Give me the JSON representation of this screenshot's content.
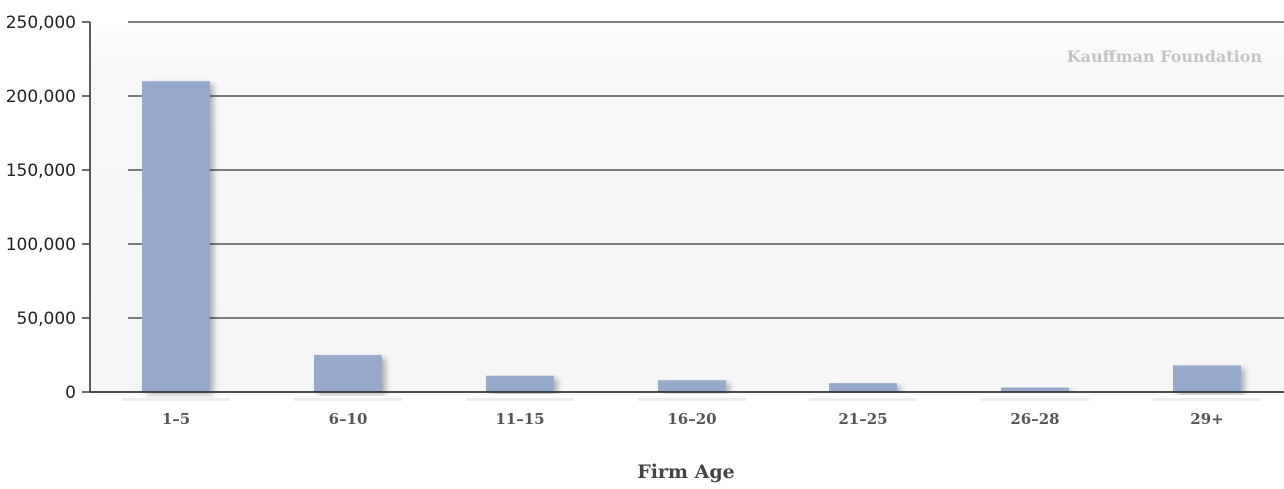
{
  "chart_data": {
    "type": "bar",
    "title": "",
    "xlabel": "Firm Age",
    "ylabel": "",
    "categories": [
      "1–5",
      "6–10",
      "11–15",
      "16–20",
      "21–25",
      "26–28",
      "29+"
    ],
    "values": [
      210000,
      25000,
      11000,
      8000,
      6000,
      3000,
      18000
    ],
    "ylim": [
      0,
      250000
    ],
    "yticks": [
      0,
      50000,
      100000,
      150000,
      200000,
      250000
    ],
    "ytick_labels": [
      "0",
      "50,000",
      "100,000",
      "150,000",
      "200,000",
      "250,000"
    ],
    "grid": true,
    "legend": "none",
    "bar_color": "#98aacb",
    "watermark": "Kauffman Foundation"
  }
}
